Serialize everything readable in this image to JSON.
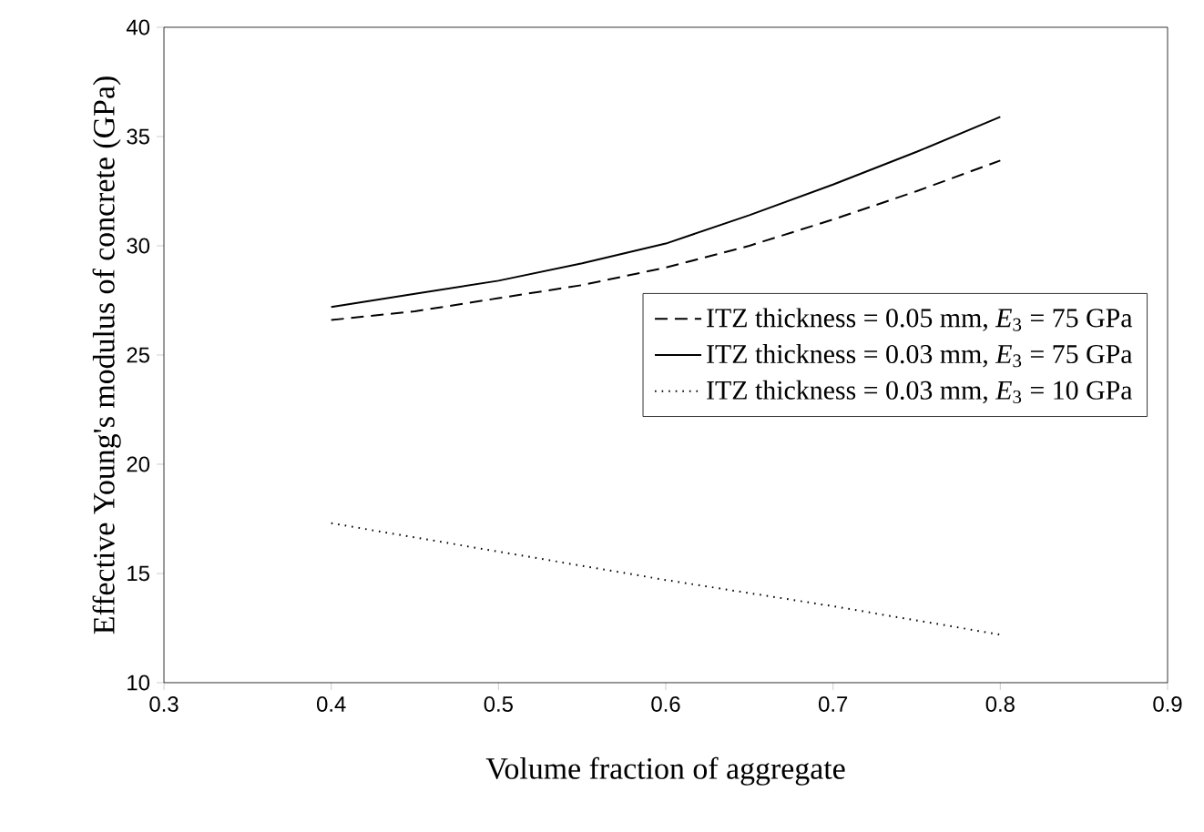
{
  "chart_data": {
    "type": "line",
    "xlabel": "Volume fraction of aggregate",
    "ylabel": "Effective Young's modulus of concrete (GPa)",
    "x": [
      0.4,
      0.45,
      0.5,
      0.55,
      0.6,
      0.65,
      0.7,
      0.75,
      0.8
    ],
    "series": [
      {
        "name": "ITZ thickness = 0.05 mm, *E*$_{3}$ = 75 GPa",
        "color": "#000000",
        "line_style": "dashed",
        "values": [
          26.6,
          27.0,
          27.6,
          28.2,
          29.0,
          30.0,
          31.2,
          32.5,
          33.9
        ]
      },
      {
        "name": "ITZ thickness = 0.03 mm, *E*$_{3}$ = 75 GPa",
        "color": "#000000",
        "line_style": "solid",
        "values": [
          27.2,
          27.8,
          28.4,
          29.2,
          30.1,
          31.4,
          32.8,
          34.3,
          35.9
        ]
      },
      {
        "name": "ITZ thickness = 0.03 mm, *E*$_{3}$ = 10 GPa",
        "color": "#000000",
        "line_style": "dotted",
        "x": [
          0.4,
          0.5,
          0.6,
          0.7,
          0.8
        ],
        "values": [
          17.3,
          16.0,
          14.7,
          13.5,
          12.2
        ]
      }
    ],
    "xlim": [
      0.3,
      0.9
    ],
    "ylim": [
      10,
      40
    ],
    "xticks": [
      0.3,
      0.4,
      0.5,
      0.6,
      0.7,
      0.8,
      0.9
    ],
    "yticks": [
      10,
      15,
      20,
      25,
      30,
      35,
      40
    ],
    "grid": false,
    "legend": "right",
    "marker": "none"
  }
}
